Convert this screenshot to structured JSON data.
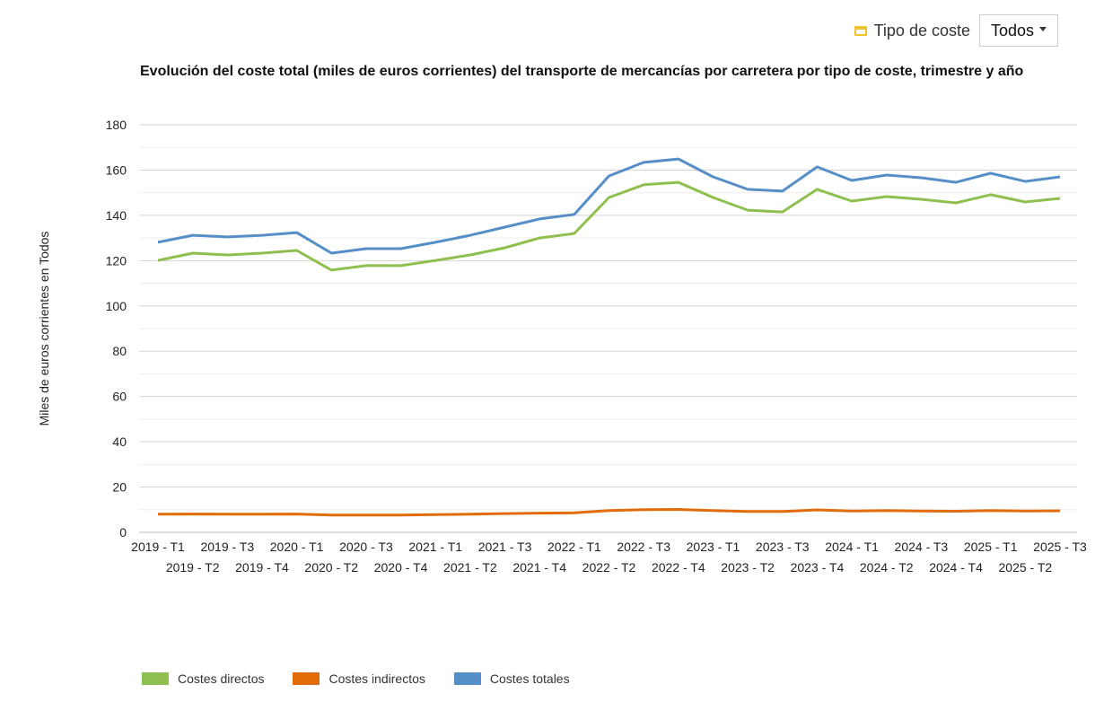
{
  "filter": {
    "label": "Tipo de coste",
    "icon": "calendar-icon",
    "selected": "Todos"
  },
  "chart_data": {
    "type": "line",
    "title": "Evolución del coste total (miles de euros corrientes) del transporte de mercancías por carretera por tipo de coste, trimestre y año",
    "xlabel": "",
    "ylabel": "Miles de euros corrientes en Todos",
    "ylim": [
      0,
      180
    ],
    "yticks": [
      0,
      20,
      40,
      60,
      80,
      100,
      120,
      140,
      160,
      180
    ],
    "grid": true,
    "legend_position": "bottom-left",
    "categories": [
      "2019 - T1",
      "2019 - T2",
      "2019 - T3",
      "2019 - T4",
      "2020 - T1",
      "2020 - T2",
      "2020 - T3",
      "2020 - T4",
      "2021 - T1",
      "2021 - T2",
      "2021 - T3",
      "2021 - T4",
      "2022 - T1",
      "2022 - T2",
      "2022 - T3",
      "2022 - T4",
      "2023 - T1",
      "2023 - T2",
      "2023 - T3",
      "2023 - T4",
      "2024 - T1",
      "2024 - T2",
      "2024 - T3",
      "2024 - T4",
      "2025 - T1",
      "2025 - T2",
      "2025 - T3"
    ],
    "series": [
      {
        "name": "Costes directos",
        "color": "#8fbf4f",
        "values": [
          120.1,
          123.3,
          122.5,
          123.3,
          124.5,
          115.8,
          117.8,
          117.8,
          120.1,
          122.5,
          125.7,
          130.0,
          132.0,
          147.9,
          153.5,
          154.6,
          147.9,
          142.3,
          141.5,
          151.5,
          146.3,
          148.3,
          147.1,
          145.5,
          149.1,
          145.9,
          147.5
        ]
      },
      {
        "name": "Costes indirectos",
        "color": "#e36c0a",
        "values": [
          8.0,
          8.1,
          8.0,
          8.0,
          8.1,
          7.6,
          7.6,
          7.6,
          7.8,
          8.0,
          8.3,
          8.5,
          8.6,
          9.6,
          10.0,
          10.1,
          9.6,
          9.2,
          9.2,
          9.9,
          9.4,
          9.6,
          9.4,
          9.3,
          9.6,
          9.4,
          9.5
        ]
      },
      {
        "name": "Costes totales",
        "color": "#568ec8",
        "values": [
          128.1,
          131.2,
          130.5,
          131.2,
          132.4,
          123.3,
          125.3,
          125.3,
          128.1,
          131.2,
          134.8,
          138.4,
          140.4,
          157.4,
          163.4,
          164.9,
          157.0,
          151.5,
          150.7,
          161.4,
          155.4,
          157.8,
          156.6,
          154.6,
          158.6,
          155.0,
          157.0
        ]
      }
    ]
  }
}
